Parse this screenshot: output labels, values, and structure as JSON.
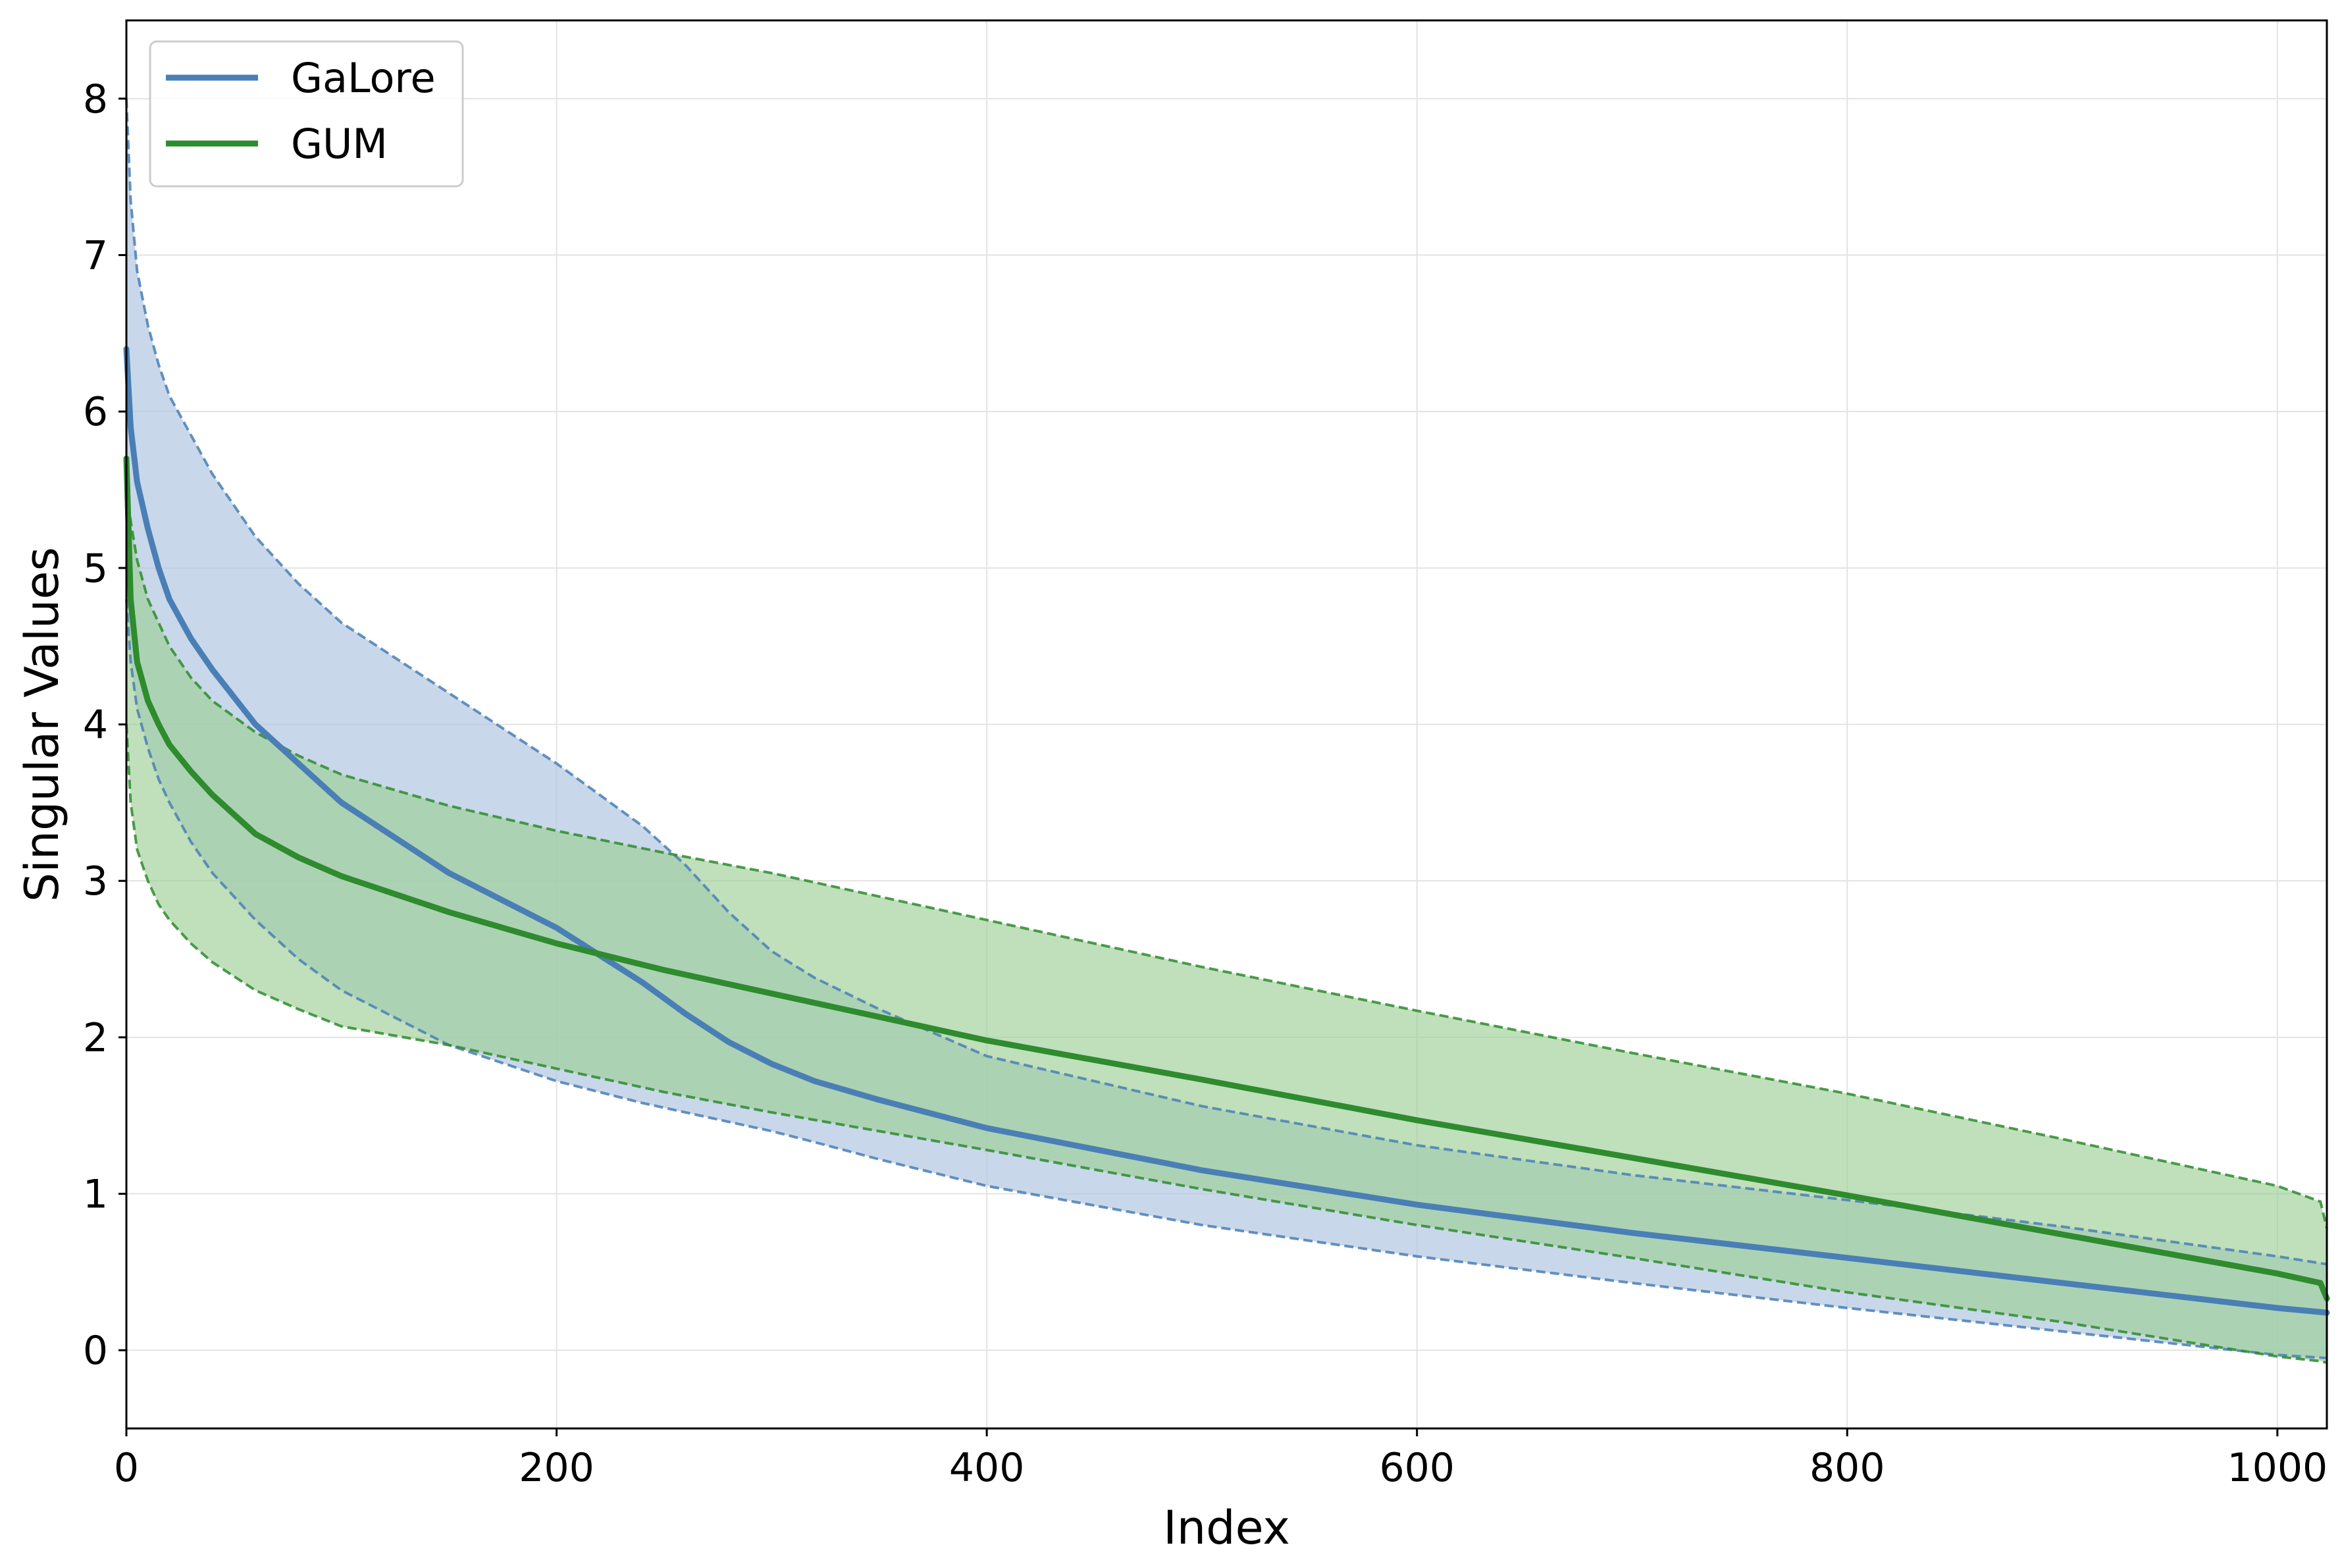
{
  "chart_data": {
    "type": "line",
    "title": "",
    "xlabel": "Index",
    "ylabel": "Singular Values",
    "xlim": [
      0,
      1023
    ],
    "ylim": [
      -0.5,
      8.5
    ],
    "xticks": [
      0,
      200,
      400,
      600,
      800,
      1000
    ],
    "xtick_labels": [
      "0",
      "200",
      "400",
      "600",
      "800",
      "1000"
    ],
    "yticks": [
      0,
      1,
      2,
      3,
      4,
      5,
      6,
      7,
      8
    ],
    "ytick_labels": [
      "0",
      "1",
      "2",
      "3",
      "4",
      "5",
      "6",
      "7",
      "8"
    ],
    "grid": true,
    "legend_position": "top-left",
    "series": [
      {
        "name": "GaLore",
        "color": "#4a7fb5",
        "fill_color": "#b3c9e2",
        "fill_opacity": 0.72,
        "x": [
          0,
          2,
          5,
          10,
          15,
          20,
          30,
          40,
          60,
          80,
          100,
          150,
          200,
          240,
          260,
          280,
          300,
          320,
          350,
          400,
          500,
          600,
          700,
          800,
          900,
          1000,
          1023
        ],
        "mean": [
          6.4,
          5.9,
          5.55,
          5.25,
          5.0,
          4.8,
          4.55,
          4.35,
          4.0,
          3.75,
          3.5,
          3.05,
          2.7,
          2.35,
          2.15,
          1.97,
          1.83,
          1.72,
          1.6,
          1.42,
          1.15,
          0.93,
          0.75,
          0.59,
          0.43,
          0.27,
          0.24
        ],
        "upper": [
          8.0,
          7.35,
          6.9,
          6.55,
          6.3,
          6.1,
          5.85,
          5.6,
          5.2,
          4.9,
          4.65,
          4.2,
          3.75,
          3.35,
          3.1,
          2.8,
          2.55,
          2.38,
          2.18,
          1.88,
          1.56,
          1.31,
          1.12,
          0.96,
          0.79,
          0.6,
          0.55
        ],
        "lower": [
          4.8,
          4.4,
          4.1,
          3.85,
          3.65,
          3.5,
          3.25,
          3.05,
          2.75,
          2.5,
          2.3,
          1.95,
          1.72,
          1.58,
          1.52,
          1.46,
          1.4,
          1.33,
          1.22,
          1.05,
          0.8,
          0.6,
          0.43,
          0.27,
          0.12,
          -0.03,
          -0.05
        ]
      },
      {
        "name": "GUM",
        "color": "#2e8b2e",
        "fill_color": "#9ccf96",
        "fill_opacity": 0.65,
        "x": [
          0,
          2,
          5,
          10,
          15,
          20,
          30,
          40,
          60,
          80,
          100,
          150,
          200,
          250,
          300,
          350,
          400,
          500,
          600,
          700,
          800,
          900,
          1000,
          1020,
          1023
        ],
        "mean": [
          5.7,
          4.8,
          4.4,
          4.15,
          4.0,
          3.87,
          3.7,
          3.55,
          3.3,
          3.15,
          3.03,
          2.8,
          2.6,
          2.43,
          2.28,
          2.13,
          1.98,
          1.73,
          1.47,
          1.23,
          0.99,
          0.74,
          0.49,
          0.43,
          0.33
        ],
        "upper": [
          5.5,
          5.3,
          5.05,
          4.8,
          4.65,
          4.5,
          4.3,
          4.15,
          3.95,
          3.8,
          3.68,
          3.48,
          3.32,
          3.18,
          3.05,
          2.9,
          2.75,
          2.45,
          2.17,
          1.9,
          1.64,
          1.35,
          1.05,
          0.95,
          0.78
        ],
        "lower": [
          4.0,
          3.5,
          3.2,
          3.0,
          2.85,
          2.75,
          2.6,
          2.48,
          2.3,
          2.18,
          2.07,
          1.95,
          1.8,
          1.65,
          1.52,
          1.4,
          1.28,
          1.03,
          0.8,
          0.59,
          0.37,
          0.18,
          -0.04,
          -0.07,
          -0.08
        ]
      }
    ]
  }
}
